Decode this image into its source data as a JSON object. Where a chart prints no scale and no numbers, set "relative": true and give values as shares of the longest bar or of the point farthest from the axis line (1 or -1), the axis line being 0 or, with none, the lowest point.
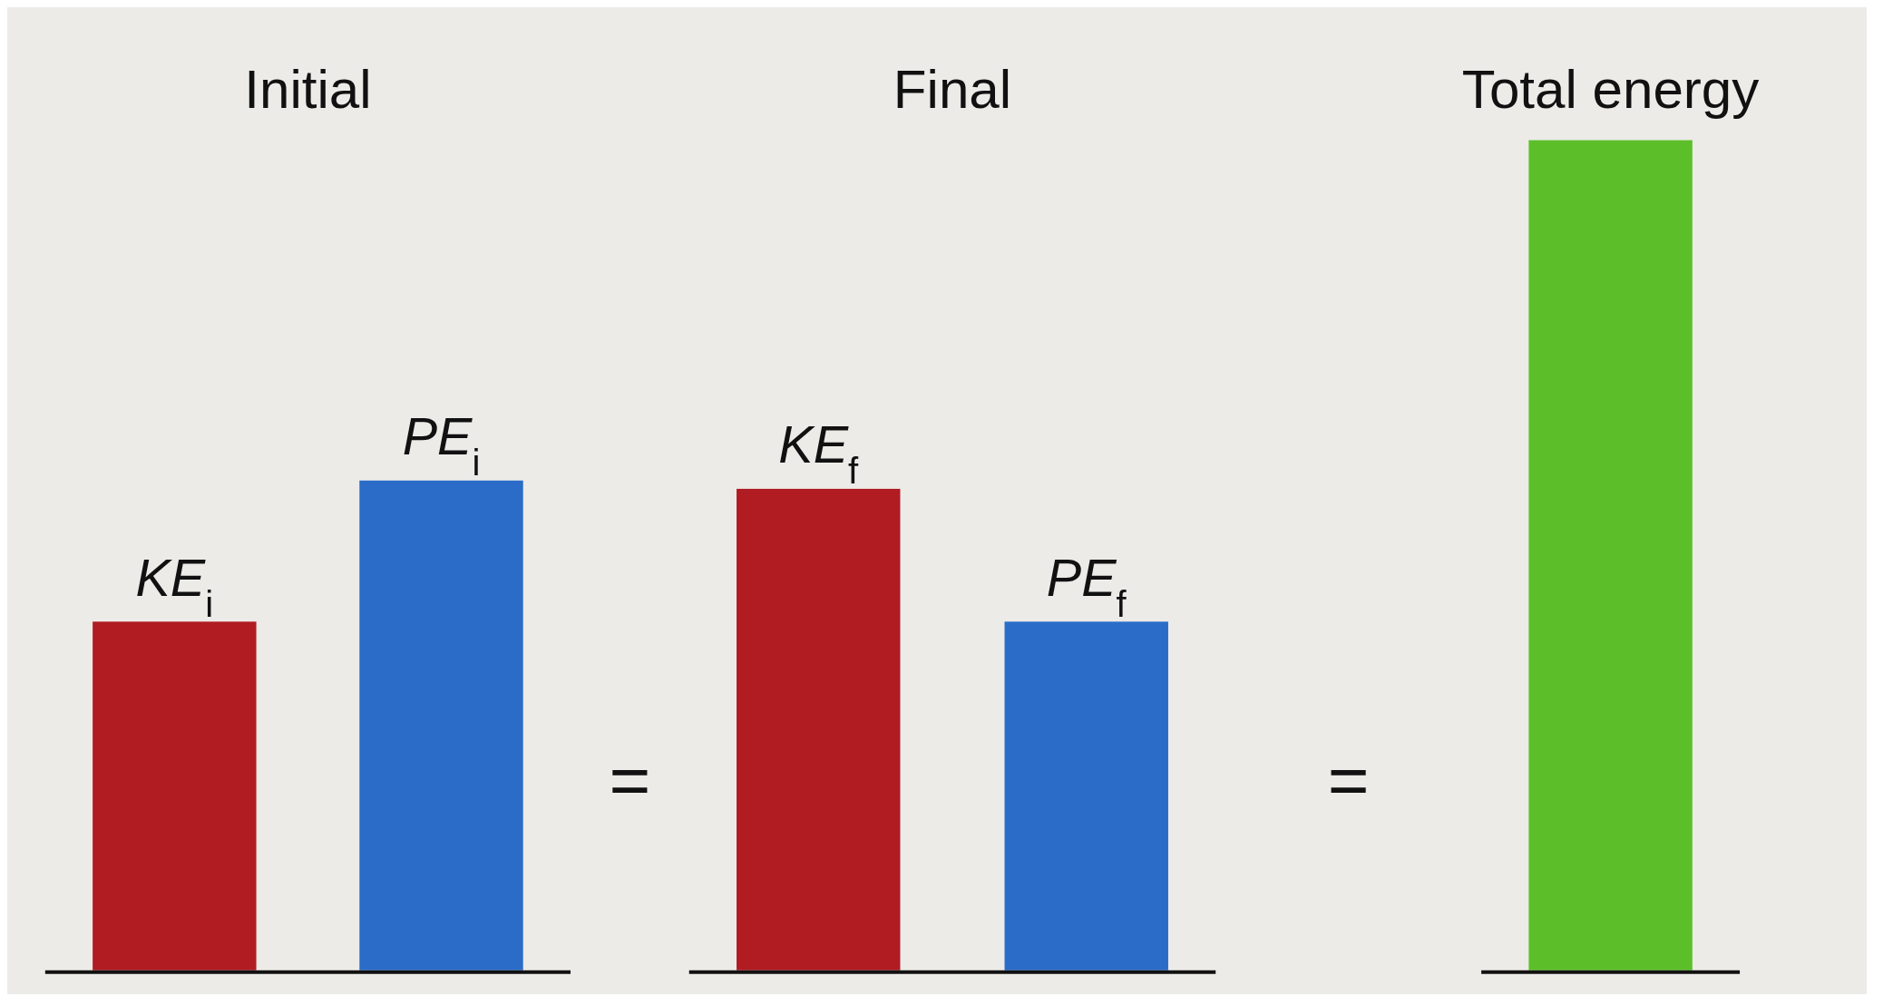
{
  "chart_data": {
    "type": "bar",
    "relative": true,
    "categories": [
      "KE$_{i}$",
      "PE$_{i}$",
      "KE$_{f}$",
      "PE$_{f}$",
      null
    ],
    "values": [
      0.42,
      0.59,
      0.58,
      0.42,
      1
    ],
    "colors": [
      "#b01c22",
      "#2a6cc8",
      "#b01c22",
      "#2a6cc8",
      "#5cbf2a"
    ],
    "annotations": [
      "Initial",
      "Final",
      "Total energy",
      "=",
      "="
    ]
  }
}
